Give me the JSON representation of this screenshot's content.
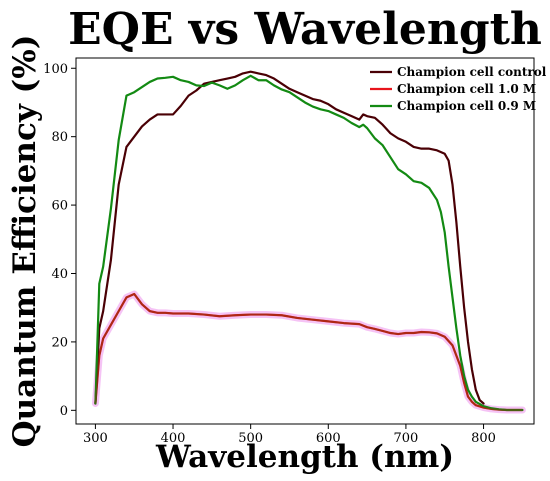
{
  "colors": {
    "control": "#4a0005",
    "m10": "#e8141c",
    "m09": "#138a13",
    "m10_halo": "#f2b4f2"
  },
  "chart_data": {
    "type": "line",
    "title": "EQE vs Wavelength",
    "xlabel": "Wavelength (nm)",
    "ylabel": "Quantum Efficiency (%)",
    "xlim": [
      275,
      865
    ],
    "ylim": [
      -4,
      103
    ],
    "xticks": [
      300,
      400,
      500,
      600,
      700,
      800
    ],
    "yticks": [
      0,
      20,
      40,
      60,
      80,
      100
    ],
    "grid": false,
    "legend_position": "top-right",
    "legend_labels": [
      "Champion cell control",
      "Champion cell 1.0 M",
      "Champion cell 0.9 M"
    ],
    "series": [
      {
        "name": "Champion cell control",
        "color_key": "control",
        "points": [
          [
            300,
            2
          ],
          [
            305,
            24
          ],
          [
            310,
            29
          ],
          [
            320,
            44
          ],
          [
            330,
            66
          ],
          [
            340,
            77
          ],
          [
            350,
            80
          ],
          [
            360,
            83
          ],
          [
            370,
            85
          ],
          [
            380,
            86.5
          ],
          [
            390,
            86.5
          ],
          [
            400,
            86.5
          ],
          [
            410,
            89
          ],
          [
            420,
            92
          ],
          [
            430,
            93.5
          ],
          [
            440,
            95.5
          ],
          [
            450,
            96
          ],
          [
            460,
            96.5
          ],
          [
            470,
            97
          ],
          [
            480,
            97.5
          ],
          [
            490,
            98.5
          ],
          [
            500,
            99
          ],
          [
            510,
            98.5
          ],
          [
            520,
            98
          ],
          [
            530,
            97
          ],
          [
            540,
            95.5
          ],
          [
            550,
            94
          ],
          [
            560,
            93
          ],
          [
            570,
            92
          ],
          [
            580,
            91
          ],
          [
            590,
            90.5
          ],
          [
            600,
            89.5
          ],
          [
            610,
            88
          ],
          [
            620,
            87
          ],
          [
            630,
            86
          ],
          [
            640,
            85
          ],
          [
            645,
            86.5
          ],
          [
            650,
            86
          ],
          [
            660,
            85.5
          ],
          [
            670,
            83.5
          ],
          [
            680,
            81
          ],
          [
            690,
            79.5
          ],
          [
            700,
            78.5
          ],
          [
            710,
            77
          ],
          [
            720,
            76.5
          ],
          [
            730,
            76.5
          ],
          [
            740,
            76
          ],
          [
            750,
            75
          ],
          [
            755,
            73
          ],
          [
            760,
            66
          ],
          [
            765,
            55
          ],
          [
            770,
            42
          ],
          [
            775,
            30
          ],
          [
            780,
            20
          ],
          [
            785,
            12
          ],
          [
            790,
            6
          ],
          [
            795,
            3
          ],
          [
            800,
            2
          ]
        ]
      },
      {
        "name": "Champion cell 1.0 M",
        "color_key": "m10",
        "points": [
          [
            300,
            2
          ],
          [
            305,
            16
          ],
          [
            310,
            21
          ],
          [
            320,
            25
          ],
          [
            330,
            29
          ],
          [
            340,
            33
          ],
          [
            350,
            34
          ],
          [
            360,
            31
          ],
          [
            370,
            29
          ],
          [
            380,
            28.5
          ],
          [
            390,
            28.5
          ],
          [
            400,
            28.3
          ],
          [
            420,
            28.3
          ],
          [
            440,
            28
          ],
          [
            460,
            27.5
          ],
          [
            480,
            27.8
          ],
          [
            500,
            28
          ],
          [
            520,
            28
          ],
          [
            540,
            27.8
          ],
          [
            560,
            27
          ],
          [
            580,
            26.5
          ],
          [
            600,
            26
          ],
          [
            620,
            25.5
          ],
          [
            640,
            25.2
          ],
          [
            650,
            24.3
          ],
          [
            660,
            23.8
          ],
          [
            670,
            23.2
          ],
          [
            680,
            22.6
          ],
          [
            690,
            22.3
          ],
          [
            700,
            22.6
          ],
          [
            710,
            22.6
          ],
          [
            720,
            22.9
          ],
          [
            730,
            22.8
          ],
          [
            740,
            22.5
          ],
          [
            750,
            21.5
          ],
          [
            760,
            19
          ],
          [
            770,
            13
          ],
          [
            775,
            8
          ],
          [
            780,
            4
          ],
          [
            785,
            2.5
          ],
          [
            790,
            1.5
          ],
          [
            800,
            0.8
          ],
          [
            810,
            0.4
          ],
          [
            820,
            0.2
          ],
          [
            830,
            0.1
          ],
          [
            840,
            0.1
          ],
          [
            850,
            0.1
          ]
        ]
      },
      {
        "name": "Champion cell 0.9 M",
        "color_key": "m09",
        "points": [
          [
            300,
            2
          ],
          [
            305,
            37
          ],
          [
            310,
            42
          ],
          [
            320,
            59
          ],
          [
            330,
            79
          ],
          [
            340,
            92
          ],
          [
            350,
            93
          ],
          [
            360,
            94.5
          ],
          [
            370,
            96
          ],
          [
            380,
            97
          ],
          [
            390,
            97.2
          ],
          [
            400,
            97.5
          ],
          [
            410,
            96.5
          ],
          [
            420,
            96
          ],
          [
            430,
            95
          ],
          [
            440,
            94.8
          ],
          [
            450,
            95.8
          ],
          [
            460,
            95
          ],
          [
            470,
            94
          ],
          [
            480,
            95
          ],
          [
            490,
            96.5
          ],
          [
            500,
            97.8
          ],
          [
            510,
            96.5
          ],
          [
            520,
            96.5
          ],
          [
            530,
            95
          ],
          [
            540,
            93.8
          ],
          [
            550,
            93
          ],
          [
            560,
            91.5
          ],
          [
            570,
            90
          ],
          [
            580,
            88.8
          ],
          [
            590,
            88
          ],
          [
            600,
            87.5
          ],
          [
            610,
            86.5
          ],
          [
            620,
            85.5
          ],
          [
            630,
            84
          ],
          [
            640,
            82.8
          ],
          [
            645,
            83.5
          ],
          [
            650,
            82.5
          ],
          [
            660,
            79.5
          ],
          [
            670,
            77.5
          ],
          [
            680,
            74
          ],
          [
            690,
            70.5
          ],
          [
            700,
            69
          ],
          [
            710,
            67
          ],
          [
            720,
            66.5
          ],
          [
            730,
            65
          ],
          [
            740,
            61.5
          ],
          [
            745,
            58
          ],
          [
            750,
            52
          ],
          [
            755,
            42
          ],
          [
            760,
            33
          ],
          [
            765,
            24
          ],
          [
            770,
            16
          ],
          [
            775,
            10
          ],
          [
            780,
            6
          ],
          [
            785,
            4
          ],
          [
            790,
            2.5
          ],
          [
            800,
            1.2
          ],
          [
            810,
            0.6
          ],
          [
            820,
            0.3
          ],
          [
            830,
            0.1
          ],
          [
            840,
            0.1
          ],
          [
            850,
            0.1
          ]
        ]
      }
    ]
  }
}
